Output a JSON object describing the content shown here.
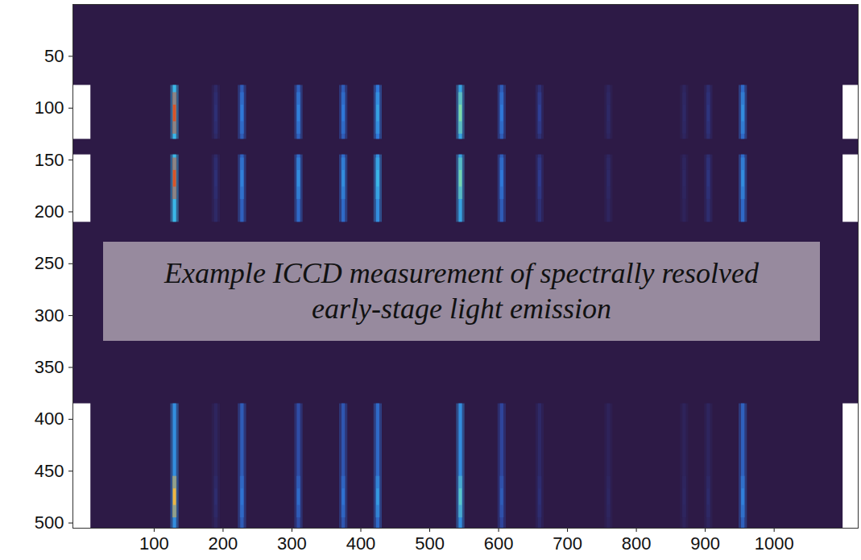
{
  "chart_data": {
    "type": "heatmap",
    "annotation": "Example ICCD measurement of spectrally resolved early-stage light emission",
    "xlim": [
      -18,
      1122
    ],
    "ylim": [
      505,
      0
    ],
    "xticks": [
      100,
      200,
      300,
      400,
      500,
      600,
      700,
      800,
      900,
      1000
    ],
    "yticks": [
      50,
      100,
      150,
      200,
      250,
      300,
      350,
      400,
      450,
      500
    ],
    "grid": false,
    "zlim": [
      0,
      1
    ],
    "bands": [
      {
        "rows": [
          78,
          130
        ],
        "peak_row": 105
      },
      {
        "rows": [
          145,
          210
        ],
        "peak_row": 168
      },
      {
        "rows": [
          385,
          505
        ],
        "peak_row": 475
      }
    ],
    "masked_columns": [
      [
        -18,
        8
      ],
      [
        1100,
        1122
      ]
    ],
    "lines": [
      {
        "x": 130,
        "values": [
          0.55,
          0.55,
          0.45
        ],
        "peaks": [
          0.95,
          0.95,
          0.85
        ]
      },
      {
        "x": 190,
        "values": [
          0.08,
          0.08,
          0.06
        ],
        "peaks": [
          0.12,
          0.12,
          0.1
        ]
      },
      {
        "x": 228,
        "values": [
          0.3,
          0.32,
          0.3
        ],
        "peaks": [
          0.4,
          0.42,
          0.38
        ]
      },
      {
        "x": 310,
        "values": [
          0.32,
          0.35,
          0.25
        ],
        "peaks": [
          0.42,
          0.45,
          0.35
        ]
      },
      {
        "x": 375,
        "values": [
          0.3,
          0.35,
          0.28
        ],
        "peaks": [
          0.4,
          0.45,
          0.38
        ]
      },
      {
        "x": 425,
        "values": [
          0.4,
          0.45,
          0.35
        ],
        "peaks": [
          0.5,
          0.55,
          0.48
        ]
      },
      {
        "x": 545,
        "values": [
          0.5,
          0.5,
          0.45
        ],
        "peaks": [
          0.7,
          0.68,
          0.62
        ]
      },
      {
        "x": 605,
        "values": [
          0.3,
          0.3,
          0.22
        ],
        "peaks": [
          0.4,
          0.4,
          0.3
        ]
      },
      {
        "x": 660,
        "values": [
          0.12,
          0.12,
          0.08
        ],
        "peaks": [
          0.2,
          0.18,
          0.12
        ]
      },
      {
        "x": 760,
        "values": [
          0.06,
          0.06,
          0.05
        ],
        "peaks": [
          0.08,
          0.08,
          0.07
        ]
      },
      {
        "x": 870,
        "values": [
          0.06,
          0.05,
          0.05
        ],
        "peaks": [
          0.08,
          0.07,
          0.07
        ]
      },
      {
        "x": 905,
        "values": [
          0.1,
          0.1,
          0.06
        ],
        "peaks": [
          0.14,
          0.14,
          0.09
        ]
      },
      {
        "x": 955,
        "values": [
          0.35,
          0.35,
          0.32
        ],
        "peaks": [
          0.45,
          0.45,
          0.42
        ]
      }
    ]
  }
}
